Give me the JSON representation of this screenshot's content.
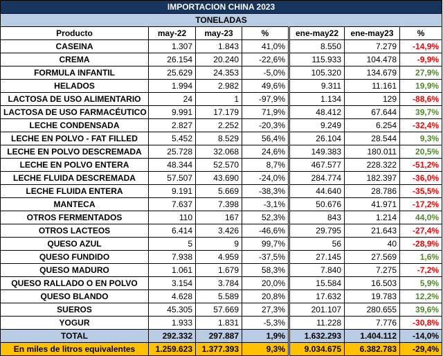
{
  "title": "IMPORTACION CHINA 2023",
  "subtitle": "TONELADAS",
  "headers": [
    "Producto",
    "may-22",
    "may-23",
    "%",
    "ene-may22",
    "ene-may23",
    "%"
  ],
  "rows": [
    {
      "product": "CASEINA",
      "may22": "1.307",
      "may23": "1.843",
      "pct1": "41,0%",
      "ytd22": "8.550",
      "ytd23": "7.279",
      "pct2": "-14,9%",
      "trend": "neg"
    },
    {
      "product": "CREMA",
      "may22": "26.154",
      "may23": "20.240",
      "pct1": "-22,6%",
      "ytd22": "115.933",
      "ytd23": "104.478",
      "pct2": "-9,9%",
      "trend": "neg"
    },
    {
      "product": "FORMULA INFANTIL",
      "may22": "25.629",
      "may23": "24.353",
      "pct1": "-5,0%",
      "ytd22": "105.320",
      "ytd23": "134.679",
      "pct2": "27,9%",
      "trend": "pos"
    },
    {
      "product": "HELADOS",
      "may22": "1.994",
      "may23": "2.982",
      "pct1": "49,6%",
      "ytd22": "9.311",
      "ytd23": "11.161",
      "pct2": "19,9%",
      "trend": "pos"
    },
    {
      "product": "LACTOSA DE USO ALIMENTARIO",
      "may22": "24",
      "may23": "1",
      "pct1": "-97,9%",
      "ytd22": "1.134",
      "ytd23": "129",
      "pct2": "-88,6%",
      "trend": "neg"
    },
    {
      "product": "LACTOSA DE USO FARMACÉUTICO",
      "may22": "9.991",
      "may23": "17.179",
      "pct1": "71,9%",
      "ytd22": "48.412",
      "ytd23": "67.644",
      "pct2": "39,7%",
      "trend": "pos"
    },
    {
      "product": "LECHE CONDENSADA",
      "may22": "2.827",
      "may23": "2.252",
      "pct1": "-20,3%",
      "ytd22": "9.249",
      "ytd23": "6.254",
      "pct2": "-32,4%",
      "trend": "neg"
    },
    {
      "product": "LECHE EN POLVO - FAT FILLED",
      "may22": "5.452",
      "may23": "8.529",
      "pct1": "56,4%",
      "ytd22": "26.104",
      "ytd23": "28.544",
      "pct2": "9,3%",
      "trend": "pos"
    },
    {
      "product": "LECHE EN POLVO DESCREMADA",
      "may22": "25.728",
      "may23": "32.068",
      "pct1": "24,6%",
      "ytd22": "149.383",
      "ytd23": "180.011",
      "pct2": "20,5%",
      "trend": "pos"
    },
    {
      "product": "LECHE EN POLVO ENTERA",
      "may22": "48.344",
      "may23": "52.570",
      "pct1": "8,7%",
      "ytd22": "467.577",
      "ytd23": "228.322",
      "pct2": "-51,2%",
      "trend": "neg"
    },
    {
      "product": "LECHE FLUIDA DESCREMADA",
      "may22": "57.507",
      "may23": "43.690",
      "pct1": "-24,0%",
      "ytd22": "284.774",
      "ytd23": "182.397",
      "pct2": "-36,0%",
      "trend": "neg"
    },
    {
      "product": "LECHE FLUIDA ENTERA",
      "may22": "9.191",
      "may23": "5.669",
      "pct1": "-38,3%",
      "ytd22": "44.640",
      "ytd23": "28.786",
      "pct2": "-35,5%",
      "trend": "neg"
    },
    {
      "product": "MANTECA",
      "may22": "7.637",
      "may23": "7.398",
      "pct1": "-3,1%",
      "ytd22": "50.676",
      "ytd23": "41.971",
      "pct2": "-17,2%",
      "trend": "neg"
    },
    {
      "product": "OTROS FERMENTADOS",
      "may22": "110",
      "may23": "167",
      "pct1": "52,3%",
      "ytd22": "843",
      "ytd23": "1.214",
      "pct2": "44,0%",
      "trend": "pos"
    },
    {
      "product": "OTROS LACTEOS",
      "may22": "6.414",
      "may23": "3.426",
      "pct1": "-46,6%",
      "ytd22": "29.795",
      "ytd23": "21.643",
      "pct2": "-27,4%",
      "trend": "neg"
    },
    {
      "product": "QUESO AZUL",
      "may22": "5",
      "may23": "9",
      "pct1": "99,7%",
      "ytd22": "56",
      "ytd23": "40",
      "pct2": "-28,9%",
      "trend": "neg"
    },
    {
      "product": "QUESO FUNDIDO",
      "may22": "7.938",
      "may23": "4.959",
      "pct1": "-37,5%",
      "ytd22": "27.145",
      "ytd23": "27.569",
      "pct2": "1,6%",
      "trend": "pos"
    },
    {
      "product": "QUESO MADURO",
      "may22": "1.061",
      "may23": "1.679",
      "pct1": "58,3%",
      "ytd22": "7.840",
      "ytd23": "7.275",
      "pct2": "-7,2%",
      "trend": "neg"
    },
    {
      "product": "QUESO RALLADO O EN POLVO",
      "may22": "3.154",
      "may23": "3.784",
      "pct1": "20,0%",
      "ytd22": "15.584",
      "ytd23": "16.503",
      "pct2": "5,9%",
      "trend": "pos"
    },
    {
      "product": "QUESO BLANDO",
      "may22": "4.628",
      "may23": "5.589",
      "pct1": "20,8%",
      "ytd22": "17.632",
      "ytd23": "19.783",
      "pct2": "12,2%",
      "trend": "pos"
    },
    {
      "product": "SUEROS",
      "may22": "45.305",
      "may23": "57.669",
      "pct1": "27,3%",
      "ytd22": "201.107",
      "ytd23": "280.655",
      "pct2": "39,6%",
      "trend": "pos"
    },
    {
      "product": "YOGUR",
      "may22": "1.933",
      "may23": "1.831",
      "pct1": "-5,3%",
      "ytd22": "11.228",
      "ytd23": "7.776",
      "pct2": "-30,8%",
      "trend": "neg"
    }
  ],
  "total": {
    "product": "TOTAL",
    "may22": "292.332",
    "may23": "297.887",
    "pct1": "1,9%",
    "ytd22": "1.632.293",
    "ytd23": "1.404.112",
    "pct2": "-14,0%"
  },
  "litros": {
    "product": "En miles de litros equivalentes",
    "may22": "1.259.623",
    "may23": "1.377.393",
    "pct1": "9,3%",
    "ytd22": "9.034.675",
    "ytd23": "6.382.783",
    "pct2": "-29,4%"
  },
  "colors": {
    "title_bg": "#17365d",
    "subtitle_bg": "#b8cce4",
    "highlight_bg": "#ffc000",
    "negative": "#ff0000",
    "positive": "#4f8a2a"
  }
}
